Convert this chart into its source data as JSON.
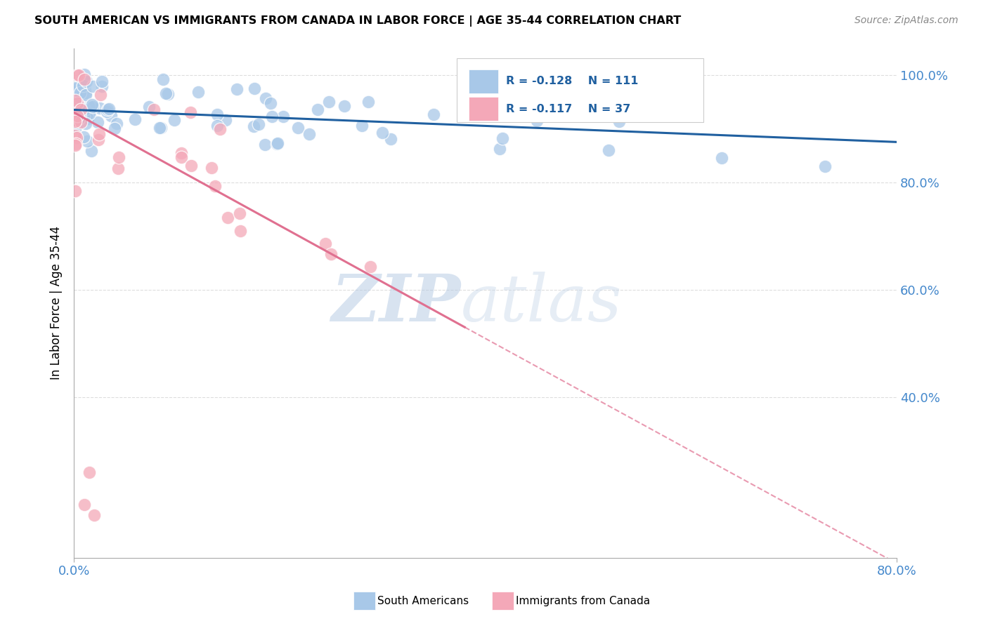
{
  "title": "SOUTH AMERICAN VS IMMIGRANTS FROM CANADA IN LABOR FORCE | AGE 35-44 CORRELATION CHART",
  "source_text": "Source: ZipAtlas.com",
  "ylabel": "In Labor Force | Age 35-44",
  "xlim": [
    0.0,
    0.8
  ],
  "ylim": [
    0.1,
    1.05
  ],
  "ytick_labels": [
    "40.0%",
    "60.0%",
    "80.0%",
    "100.0%"
  ],
  "ytick_values": [
    0.4,
    0.6,
    0.8,
    1.0
  ],
  "watermark_zip": "ZIP",
  "watermark_atlas": "atlas",
  "legend_r1": "R = -0.128",
  "legend_n1": "N = 111",
  "legend_r2": "R = -0.117",
  "legend_n2": "N = 37",
  "blue_scatter_color": "#a8c8e8",
  "pink_scatter_color": "#f4a8b8",
  "blue_line_color": "#2060a0",
  "pink_line_color": "#e07090",
  "grid_color": "#dddddd",
  "background_color": "#ffffff",
  "sa_trend_x0": 0.0,
  "sa_trend_y0": 0.935,
  "sa_trend_x1": 0.8,
  "sa_trend_y1": 0.875,
  "ca_trend_x0": 0.0,
  "ca_trend_y0": 0.93,
  "ca_trend_x1": 0.38,
  "ca_trend_y1": 0.53,
  "ca_trend_dash_x0": 0.38,
  "ca_trend_dash_y0": 0.53,
  "ca_trend_dash_x1": 0.8,
  "ca_trend_dash_y1": 0.09
}
